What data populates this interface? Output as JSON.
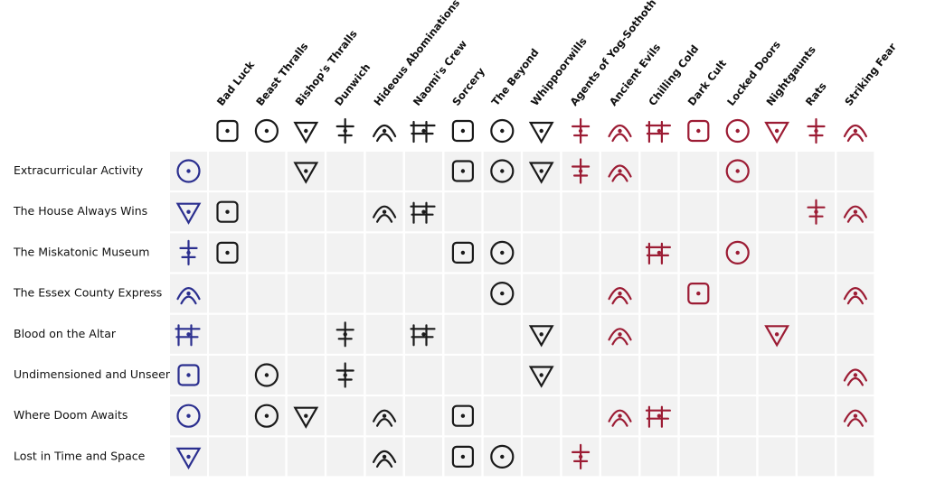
{
  "table": {
    "columns": [
      {
        "name": "Bad Luck",
        "color": "#1a1a1a"
      },
      {
        "name": "Beast Thralls",
        "color": "#1a1a1a"
      },
      {
        "name": "Bishop's Thralls",
        "color": "#1a1a1a"
      },
      {
        "name": "Dunwich",
        "color": "#1a1a1a"
      },
      {
        "name": "Hideous Abominations",
        "color": "#1a1a1a"
      },
      {
        "name": "Naomi's Crew",
        "color": "#1a1a1a"
      },
      {
        "name": "Sorcery",
        "color": "#1a1a1a"
      },
      {
        "name": "The Beyond",
        "color": "#1a1a1a"
      },
      {
        "name": "Whippoorwills",
        "color": "#1a1a1a"
      },
      {
        "name": "Agents of Yog-Sothoth",
        "color": "#9c1c34"
      },
      {
        "name": "Ancient Evils",
        "color": "#9c1c34"
      },
      {
        "name": "Chilling Cold",
        "color": "#9c1c34"
      },
      {
        "name": "Dark Cult",
        "color": "#9c1c34"
      },
      {
        "name": "Locked Doors",
        "color": "#9c1c34"
      },
      {
        "name": "Nightgaunts",
        "color": "#9c1c34"
      },
      {
        "name": "Rats",
        "color": "#9c1c34"
      },
      {
        "name": "Striking Fear",
        "color": "#9c1c34"
      }
    ],
    "row_icon_color": "#2b2f8f",
    "rows": [
      {
        "name": "Extracurricular Activity",
        "sets": [
          false,
          false,
          true,
          false,
          false,
          false,
          true,
          true,
          true,
          true,
          true,
          false,
          false,
          true,
          false,
          false,
          false
        ]
      },
      {
        "name": "The House Always Wins",
        "sets": [
          true,
          false,
          false,
          false,
          true,
          true,
          false,
          false,
          false,
          false,
          false,
          false,
          false,
          false,
          false,
          true,
          true
        ]
      },
      {
        "name": "The Miskatonic Museum",
        "sets": [
          true,
          false,
          false,
          false,
          false,
          false,
          true,
          true,
          false,
          false,
          false,
          true,
          false,
          true,
          false,
          false,
          false
        ]
      },
      {
        "name": "The Essex County Express",
        "sets": [
          false,
          false,
          false,
          false,
          false,
          false,
          false,
          true,
          false,
          false,
          true,
          false,
          true,
          false,
          false,
          false,
          true
        ]
      },
      {
        "name": "Blood on the Altar",
        "sets": [
          false,
          false,
          false,
          true,
          false,
          true,
          false,
          false,
          true,
          false,
          true,
          false,
          false,
          false,
          true,
          false,
          false
        ]
      },
      {
        "name": "Undimensioned and Unseen",
        "sets": [
          false,
          true,
          false,
          true,
          false,
          false,
          false,
          false,
          true,
          false,
          false,
          false,
          false,
          false,
          false,
          false,
          true
        ]
      },
      {
        "name": "Where Doom Awaits",
        "sets": [
          false,
          true,
          true,
          false,
          true,
          false,
          true,
          false,
          false,
          false,
          true,
          true,
          false,
          false,
          false,
          false,
          true
        ]
      },
      {
        "name": "Lost in Time and Space",
        "sets": [
          false,
          false,
          false,
          false,
          true,
          false,
          true,
          true,
          false,
          true,
          false,
          false,
          false,
          false,
          false,
          false,
          false
        ]
      }
    ]
  }
}
